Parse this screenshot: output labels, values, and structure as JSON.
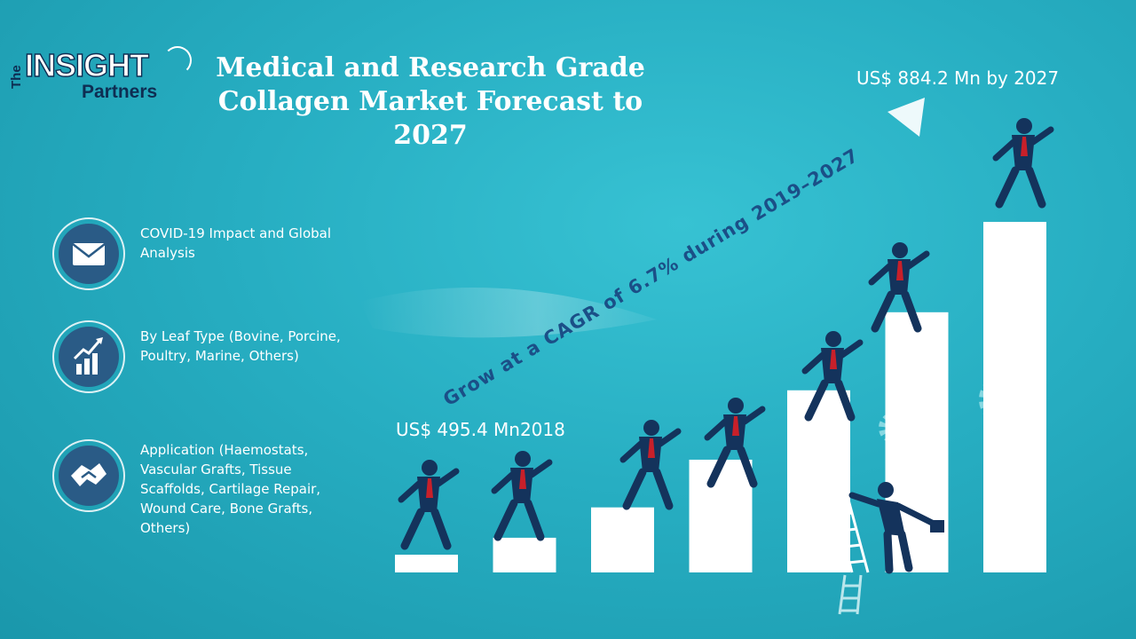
{
  "brand": {
    "logo_the": "The",
    "logo_insight": "INSIGHT",
    "logo_partners": "Partners"
  },
  "title_line1": "Medical and Research Grade",
  "title_line2": "Collagen Market Forecast to 2027",
  "segments": [
    {
      "icon": "envelope-icon",
      "text": "COVID-19 Impact and Global Analysis"
    },
    {
      "icon": "growth-chart-icon",
      "text": "By Leaf Type (Bovine, Porcine, Poultry, Marine, Others)"
    },
    {
      "icon": "handshake-icon",
      "text": "Application (Haemostats, Vascular Grafts, Tissue Scaffolds, Cartilage Repair, Wound Care, Bone Grafts, Others)"
    }
  ],
  "colors": {
    "background": "#27aec2",
    "dark_navy": "#14335c",
    "bar_fill": "#ffffff",
    "accent_red": "#c8202a",
    "cagr_text": "#1b4f87"
  },
  "chart_data": {
    "type": "bar",
    "categories": [
      "",
      "",
      "",
      "",
      "",
      "",
      ""
    ],
    "values": [
      495.4,
      520,
      555,
      610,
      690,
      780,
      884.2
    ],
    "ylim": [
      450,
      900
    ],
    "grid": false,
    "annotations": {
      "start_label": "US$ 495.4 Mn2018",
      "end_label": "US$ 884.2 Mn by 2027",
      "cagr_label": "Grow at a CAGR of 6.7% during 2019–2027"
    }
  }
}
